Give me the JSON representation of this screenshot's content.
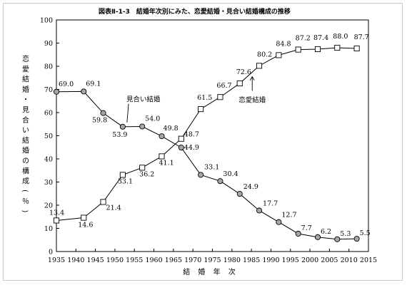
{
  "chart_data": {
    "type": "line",
    "title": "図表Ⅱ-1-3　結婚年次別にみた、恋愛結婚・見合い結婚構成の推移",
    "xlabel": "結 婚 年 次",
    "ylabel": "恋愛結婚・見合い結婚の構成（％）",
    "xlim": [
      1935,
      2015
    ],
    "ylim": [
      0,
      100
    ],
    "x_ticks": [
      1935,
      1940,
      1945,
      1950,
      1955,
      1960,
      1965,
      1970,
      1975,
      1980,
      1985,
      1990,
      1995,
      2000,
      2005,
      2010,
      2015
    ],
    "y_ticks": [
      0,
      10,
      20,
      30,
      40,
      50,
      60,
      70,
      80,
      90,
      100
    ],
    "series": [
      {
        "name": "見合い結婚",
        "marker": "circle",
        "color": "#a6a6a6",
        "x": [
          1935,
          1942,
          1947,
          1952,
          1957,
          1962,
          1967,
          1972,
          1977,
          1982,
          1987,
          1992,
          1997,
          2002,
          2007,
          2012
        ],
        "values": [
          69.0,
          69.1,
          59.8,
          53.9,
          54.0,
          49.8,
          44.9,
          33.1,
          30.4,
          24.9,
          17.7,
          12.7,
          7.7,
          6.2,
          5.3,
          5.5
        ],
        "labels": [
          "69.0",
          "69.1",
          "59.8",
          "53.9",
          "54.0",
          "49.8",
          "44.9",
          "33.1",
          "30.4",
          "24.9",
          "17.7",
          "12.7",
          "7.7",
          "6.2",
          "5.3",
          "5.5"
        ]
      },
      {
        "name": "恋愛結婚",
        "marker": "square",
        "color": "#ffffff",
        "x": [
          1935,
          1942,
          1947,
          1952,
          1957,
          1962,
          1967,
          1972,
          1977,
          1982,
          1987,
          1992,
          1997,
          2002,
          2007,
          2012
        ],
        "values": [
          13.4,
          14.6,
          21.4,
          33.1,
          36.2,
          41.1,
          48.7,
          61.5,
          66.7,
          72.6,
          80.2,
          84.8,
          87.2,
          87.4,
          88.0,
          87.7
        ],
        "labels": [
          "13.4",
          "14.6",
          "21.4",
          "33.1",
          "36.2",
          "41.1",
          "48.7",
          "61.5",
          "66.7",
          "72.6",
          "80.2",
          "84.8",
          "87.2",
          "87.4",
          "88.0",
          "87.7"
        ]
      }
    ],
    "annotations": [
      "見合い結婚",
      "恋愛結婚"
    ],
    "grid": false
  }
}
